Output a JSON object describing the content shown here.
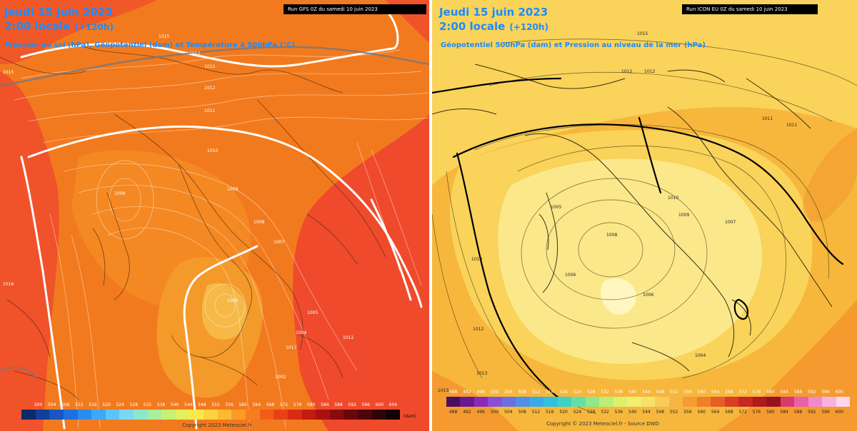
{
  "left_panel": {
    "title_date": "jeudi 15 juin 2023",
    "title_time": "2:00 locale",
    "lead_time": "(+120h)",
    "subtitle": "Pression au sol (hPa), Géopotentiel (dam) et Température à 500hPa (°C)",
    "run_label": "Run GFS 0Z du samedi 10 juin 2023",
    "scale_ticks": [
      "500",
      "504",
      "508",
      "512",
      "516",
      "520",
      "524",
      "528",
      "532",
      "536",
      "540",
      "544",
      "548",
      "552",
      "556",
      "560",
      "564",
      "568",
      "572",
      "576",
      "580",
      "584",
      "588",
      "592",
      "596",
      "600",
      "604"
    ],
    "scale_unit": "(dam)",
    "scale_colors": [
      "#0b2a6b",
      "#123f99",
      "#1a55c4",
      "#1f6fe0",
      "#2a8cf0",
      "#3fa8f5",
      "#5cc4f8",
      "#7ad8f2",
      "#8fe6cf",
      "#a6ef9e",
      "#c6f274",
      "#e3f15a",
      "#f7e94c",
      "#fbd23f",
      "#fcb932",
      "#fb9b27",
      "#f77d1e",
      "#f25e18",
      "#e84214",
      "#d92a12",
      "#c41a10",
      "#a8110e",
      "#8a0b0c",
      "#6b070a",
      "#4d0508",
      "#2f0305",
      "#150102"
    ],
    "copyright": "Copyright 2023 Meteociel.fr",
    "pressure_labels": [
      "1015",
      "1012",
      "1012",
      "1012",
      "1011",
      "1010",
      "1009",
      "1008",
      "1008",
      "1007",
      "1006",
      "1005",
      "1004",
      "1002",
      "1015",
      "1016",
      "1017",
      "1012"
    ],
    "colors": {
      "hot": "#f0522a",
      "warm": "#f27a1e",
      "mild": "#f49a2a",
      "cool": "#f6bc4a"
    }
  },
  "right_panel": {
    "title_date": "Jeudi 15 juin 2023",
    "title_time": "2:00 locale",
    "lead_time": "(+120h)",
    "subtitle": "Géopotentiel 500hPa (dam) et Pression au niveau de la mer (hPa)",
    "run_label": "Run ICON EU 0Z du samedi 10 juin 2023",
    "scale_ticks": [
      "488",
      "492",
      "496",
      "500",
      "504",
      "508",
      "512",
      "516",
      "520",
      "524",
      "528",
      "532",
      "536",
      "540",
      "544",
      "548",
      "552",
      "556",
      "560",
      "564",
      "568",
      "572",
      "576",
      "580",
      "584",
      "588",
      "592",
      "596",
      "600"
    ],
    "scale_colors": [
      "#4b0f5e",
      "#6a1a8c",
      "#8a2bb8",
      "#8a4fd6",
      "#6c6fe0",
      "#4f8fe6",
      "#3aa9e8",
      "#31c0e0",
      "#3dd2c6",
      "#63dfa6",
      "#8fe88a",
      "#b9ef79",
      "#dbf06f",
      "#f1ee72",
      "#f8e06d",
      "#f8cc5a",
      "#f6b643",
      "#f39c33",
      "#ee7f2b",
      "#e65e27",
      "#d93f24",
      "#c72820",
      "#b01a1e",
      "#96121f",
      "#d63a6c",
      "#e860a8",
      "#f08acb",
      "#f6b3e1",
      "#fbd7ef"
    ],
    "copyright": "Copyright © 2023 Meteociel.fr - Source DWD",
    "pressure_labels": [
      "1015",
      "1012",
      "1012",
      "1011",
      "1011",
      "1010",
      "1009",
      "1008",
      "1007",
      "1006",
      "1006",
      "1005",
      "1004",
      "1010",
      "1012",
      "1013",
      "1015"
    ],
    "colors": {
      "pale": "#fbe88a",
      "mid": "#f9d35a",
      "deep": "#f6b73c",
      "edge": "#f49a2e"
    }
  }
}
